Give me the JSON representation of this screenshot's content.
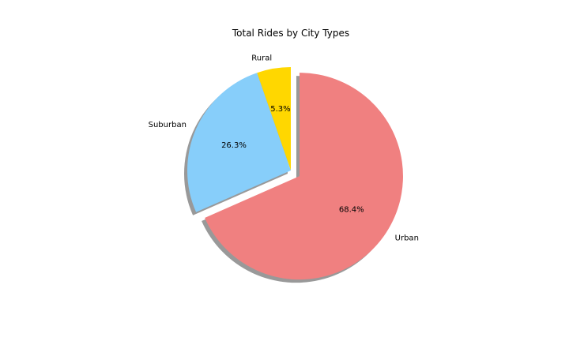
{
  "chart_data": {
    "type": "pie",
    "title": "Total Rides by City Types",
    "categories": [
      "Rural",
      "Suburban",
      "Urban"
    ],
    "values": [
      5.3,
      26.3,
      68.4
    ],
    "percent_labels": [
      "5.3%",
      "26.3%",
      "68.4%"
    ],
    "colors": [
      "#FFD700",
      "#87CEFA",
      "#F08080"
    ],
    "explode": [
      0,
      0,
      0.1
    ],
    "start_angle": 90,
    "shadow": true,
    "legend": "none"
  }
}
